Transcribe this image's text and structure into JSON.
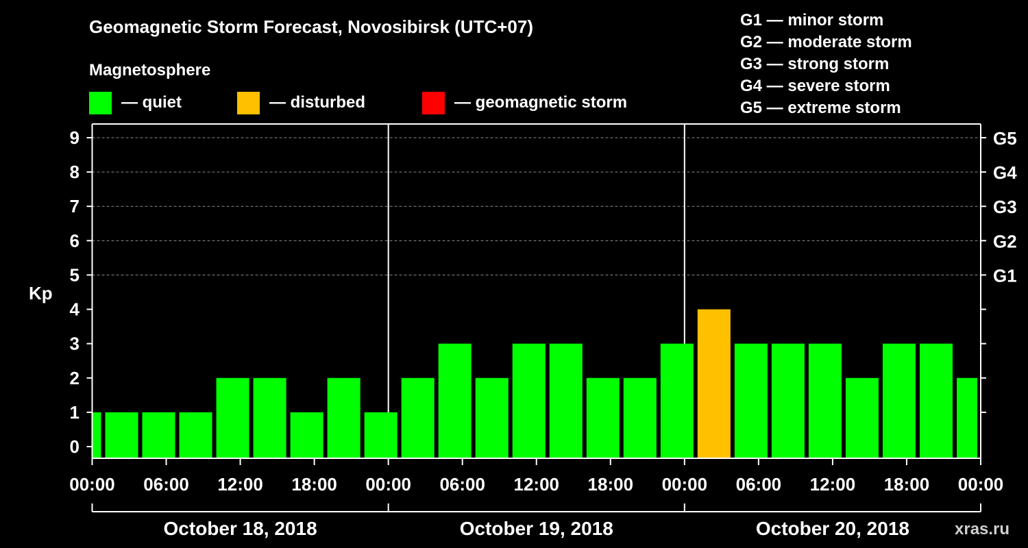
{
  "chart_data": {
    "type": "bar",
    "title": "Geomagnetic Storm Forecast, Novosibirsk (UTC+07)",
    "legend_title": "Magnetosphere",
    "legend": [
      {
        "label": "— quiet",
        "color": "#00ff00"
      },
      {
        "label": "— disturbed",
        "color": "#ffc000"
      },
      {
        "label": "— geomagnetic storm",
        "color": "#ff0000"
      }
    ],
    "scale": [
      "G1 — minor storm",
      "G2 — moderate storm",
      "G3 — strong storm",
      "G4 — severe storm",
      "G5 — extreme storm"
    ],
    "ylabel": "Kp",
    "ylim": [
      0,
      9
    ],
    "y_ticks": [
      "0",
      "1",
      "2",
      "3",
      "4",
      "5",
      "6",
      "7",
      "8",
      "9"
    ],
    "right_ticks": [
      {
        "kp": 5,
        "label": "G1"
      },
      {
        "kp": 6,
        "label": "G2"
      },
      {
        "kp": 7,
        "label": "G3"
      },
      {
        "kp": 8,
        "label": "G4"
      },
      {
        "kp": 9,
        "label": "G5"
      }
    ],
    "x_range_hours": [
      0,
      72
    ],
    "x_ticks": [
      {
        "hour": 0,
        "label": "00:00"
      },
      {
        "hour": 6,
        "label": "06:00"
      },
      {
        "hour": 12,
        "label": "12:00"
      },
      {
        "hour": 18,
        "label": "18:00"
      },
      {
        "hour": 24,
        "label": "00:00"
      },
      {
        "hour": 30,
        "label": "06:00"
      },
      {
        "hour": 36,
        "label": "12:00"
      },
      {
        "hour": 42,
        "label": "18:00"
      },
      {
        "hour": 48,
        "label": "00:00"
      },
      {
        "hour": 54,
        "label": "06:00"
      },
      {
        "hour": 60,
        "label": "12:00"
      },
      {
        "hour": 66,
        "label": "18:00"
      },
      {
        "hour": 72,
        "label": "00:00"
      }
    ],
    "days": [
      "October 18, 2018",
      "October 19, 2018",
      "October 20, 2018"
    ],
    "series": [
      {
        "name": "Kp",
        "start_hours": [
          0,
          1,
          4,
          7,
          10,
          13,
          16,
          19,
          22,
          25,
          28,
          31,
          34,
          37,
          40,
          43,
          46,
          49,
          52,
          55,
          58,
          61,
          64,
          67,
          70
        ],
        "values": [
          1,
          1,
          1,
          1,
          2,
          2,
          1,
          2,
          1,
          2,
          3,
          2,
          3,
          3,
          2,
          2,
          3,
          4,
          3,
          3,
          3,
          2,
          3,
          3,
          2
        ],
        "colors": [
          "#00ff00",
          "#00ff00",
          "#00ff00",
          "#00ff00",
          "#00ff00",
          "#00ff00",
          "#00ff00",
          "#00ff00",
          "#00ff00",
          "#00ff00",
          "#00ff00",
          "#00ff00",
          "#00ff00",
          "#00ff00",
          "#00ff00",
          "#00ff00",
          "#00ff00",
          "#ffc000",
          "#00ff00",
          "#00ff00",
          "#00ff00",
          "#00ff00",
          "#00ff00",
          "#00ff00",
          "#00ff00"
        ]
      }
    ],
    "watermark": "xras.ru"
  }
}
